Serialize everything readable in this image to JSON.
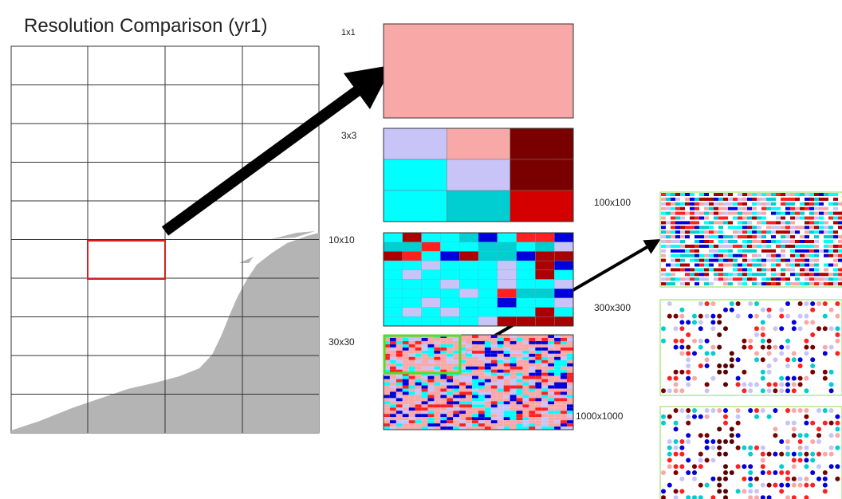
{
  "header": {
    "title": "Resolution Comparison (yr1)"
  },
  "panels": [
    {
      "label": "1x1"
    },
    {
      "label": "3x3"
    },
    {
      "label": "10x10"
    },
    {
      "label": "30x30"
    },
    {
      "label": "100x100"
    },
    {
      "label": "300x300"
    },
    {
      "label": "1000x1000"
    }
  ]
}
